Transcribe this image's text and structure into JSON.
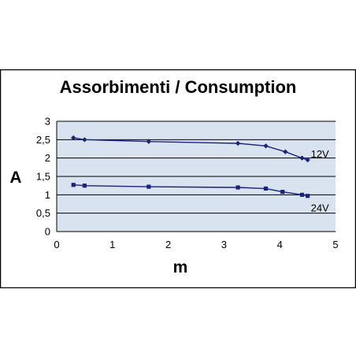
{
  "chart_data": {
    "type": "line",
    "title": "Assorbimenti / Consumption",
    "xlabel": "m",
    "ylabel": "A",
    "xlim": [
      0,
      5
    ],
    "ylim": [
      0,
      3
    ],
    "x_ticks": [
      "0",
      "1",
      "2",
      "3",
      "4",
      "5"
    ],
    "y_ticks": [
      "0",
      "0,5",
      "1",
      "1,5",
      "2",
      "2,5",
      "3"
    ],
    "grid": true,
    "series": [
      {
        "name": "12V",
        "marker": "diamond",
        "x": [
          0.3,
          0.5,
          1.65,
          3.25,
          3.75,
          4.1,
          4.4,
          4.5
        ],
        "y": [
          2.55,
          2.5,
          2.45,
          2.4,
          2.33,
          2.17,
          2.0,
          1.95
        ]
      },
      {
        "name": "24V",
        "marker": "square",
        "x": [
          0.3,
          0.5,
          1.65,
          3.25,
          3.75,
          4.05,
          4.4,
          4.5
        ],
        "y": [
          1.27,
          1.25,
          1.22,
          1.2,
          1.17,
          1.08,
          1.0,
          0.97
        ]
      }
    ],
    "colors": {
      "plot_background": "#d9e3f0",
      "gridline": "#000000",
      "series_line": "#1a237e",
      "frame": "#000000"
    }
  }
}
